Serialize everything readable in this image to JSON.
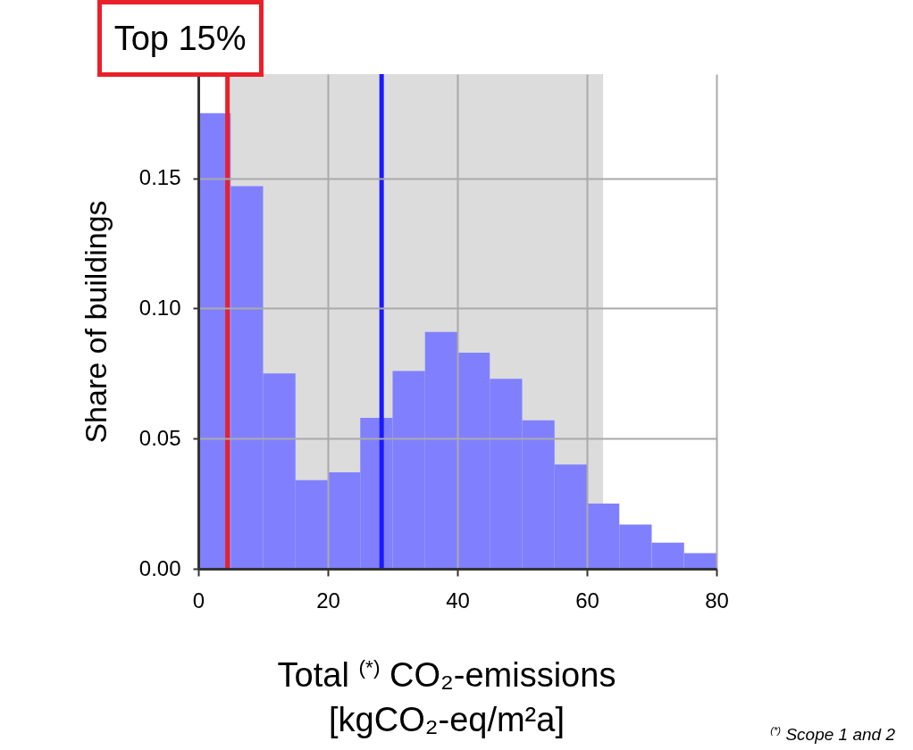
{
  "chart_data": {
    "type": "histogram",
    "bins": [
      0,
      5,
      10,
      15,
      20,
      25,
      30,
      35,
      40,
      45,
      50,
      55,
      60,
      65,
      70,
      75,
      80
    ],
    "values": [
      0.175,
      0.147,
      0.075,
      0.034,
      0.037,
      0.058,
      0.076,
      0.091,
      0.083,
      0.073,
      0.057,
      0.04,
      0.025,
      0.017,
      0.01,
      0.006
    ],
    "color": "#8080ff",
    "xlabel": "Total $^{(*)}$ CO₂-emissions [kgCO₂-eq/m²a]",
    "ylabel": "Share of buildings",
    "xlim": [
      0,
      80
    ],
    "xticks": [
      0,
      20,
      40,
      60,
      80
    ],
    "ylim": [
      0,
      0.19
    ],
    "yticks": [
      {
        "value": 0,
        "label": "0.00"
      },
      {
        "value": 0.05,
        "label": "0.05"
      },
      {
        "value": 0.1,
        "label": "0.10"
      },
      {
        "value": 0.15,
        "label": "0.15"
      }
    ],
    "grid": true,
    "ref_lines": [
      {
        "axis": "x",
        "value": 4.5,
        "label": "Top 15%",
        "color": "#e8202a"
      },
      {
        "axis": "x",
        "value": 28.3,
        "color": "#1a1aff"
      }
    ],
    "bands": [
      {
        "axis": "x",
        "from": 4.5,
        "to": 62.5,
        "color": "#dcdcdc"
      }
    ],
    "annotations": [
      "$^{(*)}$ Scope 1 and 2"
    ]
  }
}
